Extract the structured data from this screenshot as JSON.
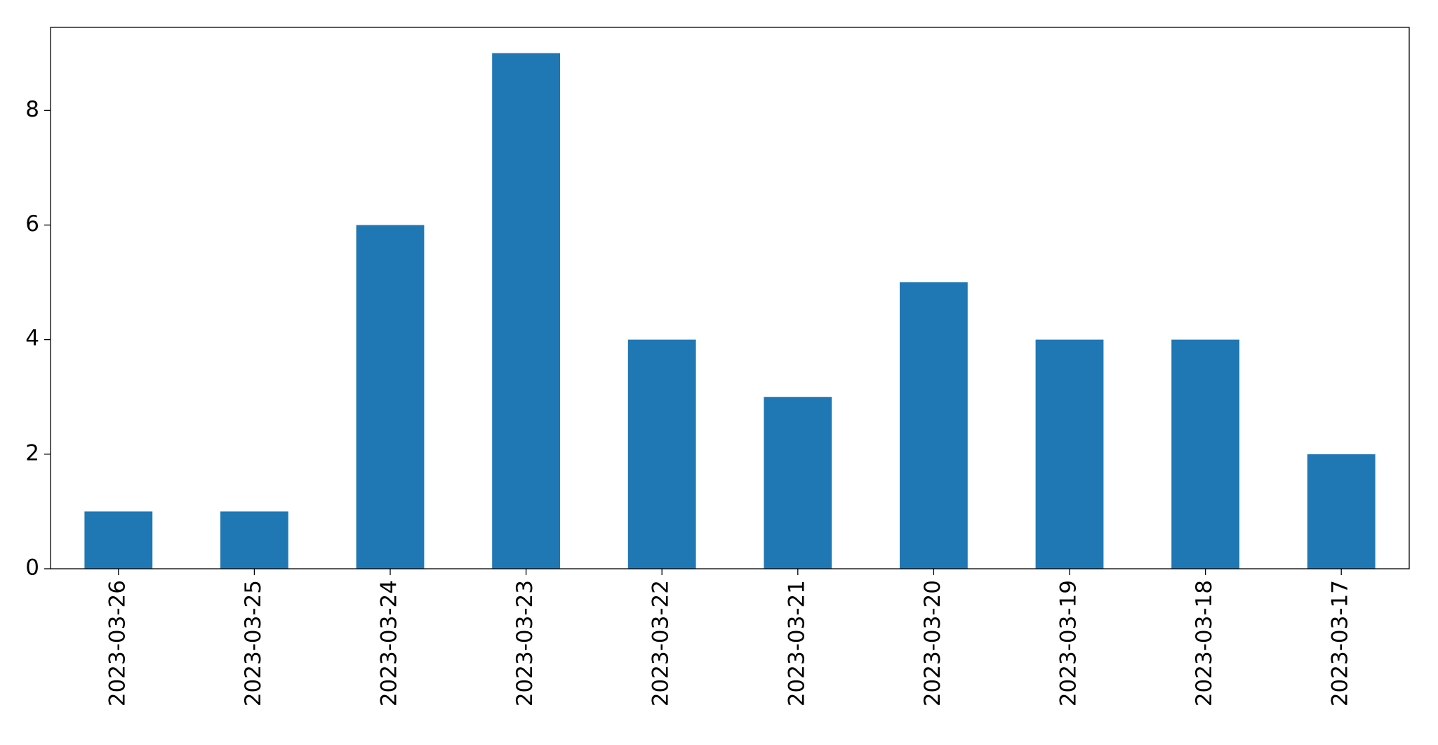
{
  "chart_data": {
    "type": "bar",
    "categories": [
      "2023-03-26",
      "2023-03-25",
      "2023-03-24",
      "2023-03-23",
      "2023-03-22",
      "2023-03-21",
      "2023-03-20",
      "2023-03-19",
      "2023-03-18",
      "2023-03-17"
    ],
    "values": [
      1,
      1,
      6,
      9,
      4,
      3,
      5,
      4,
      4,
      2
    ],
    "color": "#1f77b4",
    "ylim": [
      0,
      9.45
    ],
    "yticks": [
      0,
      2,
      4,
      6,
      8
    ],
    "grid": false
  }
}
